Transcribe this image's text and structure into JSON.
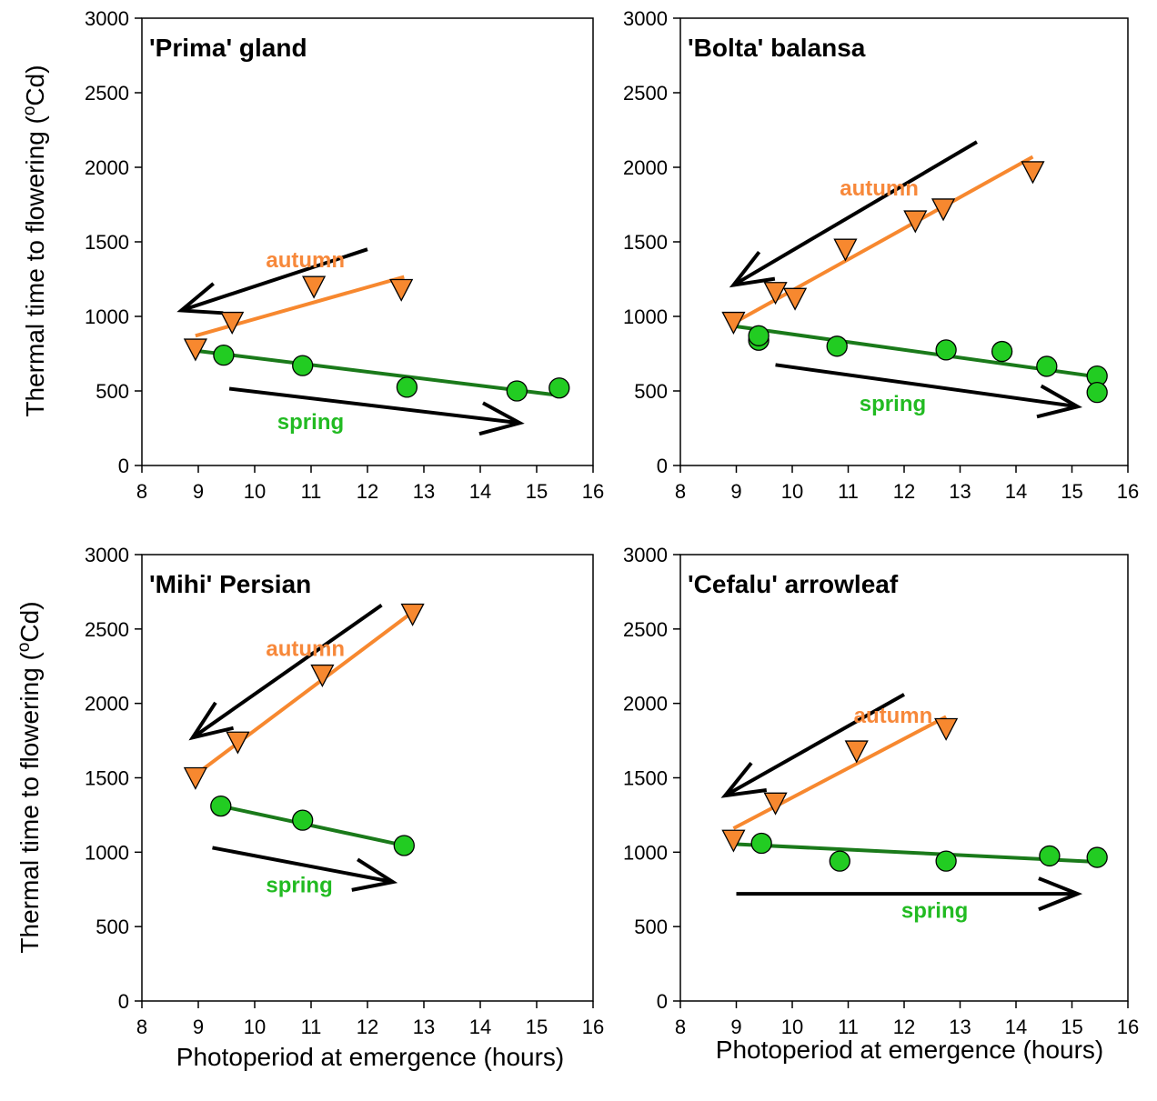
{
  "colors": {
    "autumn": "#f7882f",
    "spring": "#22cc22",
    "autumn_fit": "#f7882f",
    "spring_fit": "#1a7a1a",
    "arrow": "#000000",
    "autumn_label": "#f7883a",
    "spring_label": "#22bb22"
  },
  "axis_labels": {
    "ylabel_left_top": "Thermal time to flowering (",
    "ylabel_sup": "o",
    "ylabel_unit": "Cd)",
    "xlabel": "Photoperiod at emergence (hours)"
  },
  "chart_data": [
    {
      "type": "scatter",
      "title": "'Prima' gland",
      "xlim": [
        8,
        16
      ],
      "ylim": [
        0,
        3000
      ],
      "xticks": [
        8,
        9,
        10,
        11,
        12,
        13,
        14,
        15,
        16
      ],
      "yticks": [
        0,
        500,
        1000,
        1500,
        2000,
        2500,
        3000
      ],
      "autumn_label": "autumn",
      "spring_label": "spring",
      "series": [
        {
          "season": "autumn",
          "marker": "triangle-down",
          "x": [
            8.95,
            9.6,
            11.05,
            12.6
          ],
          "y": [
            780,
            960,
            1200,
            1180
          ],
          "fit": [
            [
              8.95,
              870
            ],
            [
              12.65,
              1265
            ]
          ]
        },
        {
          "season": "spring",
          "marker": "circle",
          "x": [
            9.45,
            10.85,
            12.7,
            14.65,
            15.4
          ],
          "y": [
            740,
            670,
            525,
            500,
            520
          ],
          "fit": [
            [
              8.95,
              770
            ],
            [
              15.4,
              470
            ]
          ]
        }
      ],
      "arrows": [
        {
          "season": "autumn",
          "from": [
            12.0,
            1450
          ],
          "to": [
            8.7,
            1040
          ]
        },
        {
          "season": "spring",
          "from": [
            9.55,
            515
          ],
          "to": [
            14.7,
            285
          ]
        }
      ],
      "label_pos": {
        "autumn": [
          10.2,
          1330
        ],
        "spring": [
          10.4,
          245
        ]
      }
    },
    {
      "type": "scatter",
      "title": "'Bolta' balansa",
      "xlim": [
        8,
        16
      ],
      "ylim": [
        0,
        3000
      ],
      "xticks": [
        8,
        9,
        10,
        11,
        12,
        13,
        14,
        15,
        16
      ],
      "yticks": [
        0,
        500,
        1000,
        1500,
        2000,
        2500,
        3000
      ],
      "autumn_label": "autumn",
      "spring_label": "spring",
      "series": [
        {
          "season": "autumn",
          "marker": "triangle-down",
          "x": [
            8.95,
            9.7,
            10.05,
            10.95,
            12.2,
            12.7,
            14.3
          ],
          "y": [
            960,
            1160,
            1120,
            1450,
            1640,
            1720,
            1970
          ],
          "fit": [
            [
              8.95,
              955
            ],
            [
              14.3,
              2070
            ]
          ]
        },
        {
          "season": "spring",
          "marker": "circle",
          "x": [
            9.4,
            9.4,
            10.8,
            12.75,
            13.75,
            14.55,
            15.45,
            15.45
          ],
          "y": [
            840,
            870,
            800,
            775,
            765,
            665,
            600,
            490
          ],
          "fit": [
            [
              8.95,
              935
            ],
            [
              15.45,
              595
            ]
          ]
        }
      ],
      "arrows": [
        {
          "season": "autumn",
          "from": [
            13.3,
            2170
          ],
          "to": [
            8.95,
            1210
          ]
        },
        {
          "season": "spring",
          "from": [
            9.7,
            675
          ],
          "to": [
            15.1,
            395
          ]
        }
      ],
      "label_pos": {
        "autumn": [
          10.85,
          1810
        ],
        "spring": [
          11.2,
          365
        ]
      }
    },
    {
      "type": "scatter",
      "title": "'Mihi' Persian",
      "xlim": [
        8,
        16
      ],
      "ylim": [
        0,
        3000
      ],
      "xticks": [
        8,
        9,
        10,
        11,
        12,
        13,
        14,
        15,
        16
      ],
      "yticks": [
        0,
        500,
        1000,
        1500,
        2000,
        2500,
        3000
      ],
      "autumn_label": "autumn",
      "spring_label": "spring",
      "series": [
        {
          "season": "autumn",
          "marker": "triangle-down",
          "x": [
            8.95,
            9.7,
            11.2,
            12.8
          ],
          "y": [
            1500,
            1740,
            2190,
            2600
          ],
          "fit": [
            [
              8.95,
              1520
            ],
            [
              12.75,
              2600
            ]
          ]
        },
        {
          "season": "spring",
          "marker": "circle",
          "x": [
            9.4,
            10.85,
            12.65
          ],
          "y": [
            1310,
            1215,
            1045
          ],
          "fit": [
            [
              9.4,
              1310
            ],
            [
              12.65,
              1045
            ]
          ]
        }
      ],
      "arrows": [
        {
          "season": "autumn",
          "from": [
            12.25,
            2660
          ],
          "to": [
            8.9,
            1770
          ]
        },
        {
          "season": "spring",
          "from": [
            9.25,
            1030
          ],
          "to": [
            12.45,
            800
          ]
        }
      ],
      "label_pos": {
        "autumn": [
          10.2,
          2320
        ],
        "spring": [
          10.2,
          730
        ]
      }
    },
    {
      "type": "scatter",
      "title": "'Cefalu' arrowleaf",
      "xlim": [
        8,
        16
      ],
      "ylim": [
        0,
        3000
      ],
      "xticks": [
        8,
        9,
        10,
        11,
        12,
        13,
        14,
        15,
        16
      ],
      "yticks": [
        0,
        500,
        1000,
        1500,
        2000,
        2500,
        3000
      ],
      "autumn_label": "autumn",
      "spring_label": "spring",
      "series": [
        {
          "season": "autumn",
          "marker": "triangle-down",
          "x": [
            8.95,
            9.7,
            11.15,
            12.75
          ],
          "y": [
            1080,
            1330,
            1680,
            1830
          ],
          "fit": [
            [
              8.95,
              1160
            ],
            [
              12.75,
              1910
            ]
          ]
        },
        {
          "season": "spring",
          "marker": "circle",
          "x": [
            9.45,
            10.85,
            12.75,
            14.6,
            15.45
          ],
          "y": [
            1060,
            940,
            940,
            975,
            965
          ],
          "fit": [
            [
              8.95,
              1055
            ],
            [
              15.45,
              935
            ]
          ]
        }
      ],
      "arrows": [
        {
          "season": "autumn",
          "from": [
            12.0,
            2060
          ],
          "to": [
            8.8,
            1380
          ]
        },
        {
          "season": "spring",
          "from": [
            9.0,
            720
          ],
          "to": [
            15.1,
            720
          ]
        }
      ],
      "label_pos": {
        "autumn": [
          11.1,
          1870
        ],
        "spring": [
          11.95,
          560
        ]
      }
    }
  ]
}
